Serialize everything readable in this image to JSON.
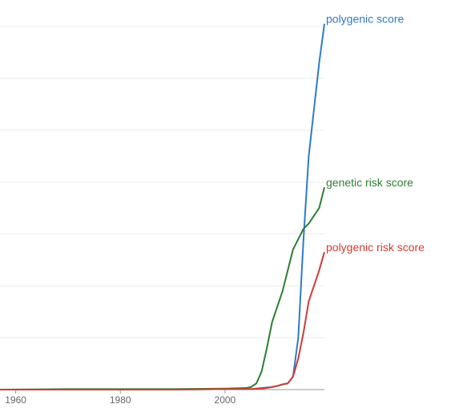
{
  "chart_data": {
    "type": "line",
    "x": [
      1957,
      1970,
      1990,
      2000,
      2004,
      2005,
      2006,
      2007,
      2008,
      2009,
      2010,
      2011,
      2012,
      2013,
      2014,
      2015,
      2016,
      2017,
      2018,
      2019
    ],
    "series": [
      {
        "name": "polygenic score",
        "color": "#2f7bc6",
        "values": [
          0,
          0,
          0,
          0.01,
          0.01,
          0.01,
          0.02,
          0.03,
          0.04,
          0.05,
          0.07,
          0.1,
          0.12,
          0.25,
          1.0,
          2.9,
          4.5,
          5.4,
          6.3,
          7.05
        ]
      },
      {
        "name": "genetic risk score",
        "color": "#2e7d32",
        "values": [
          0,
          0.01,
          0.01,
          0.02,
          0.03,
          0.05,
          0.12,
          0.35,
          0.8,
          1.3,
          1.6,
          1.9,
          2.3,
          2.7,
          2.9,
          3.1,
          3.2,
          3.35,
          3.5,
          3.9
        ]
      },
      {
        "name": "polygenic risk score",
        "color": "#d03b35",
        "values": [
          0,
          0,
          0,
          0.01,
          0.01,
          0.01,
          0.02,
          0.02,
          0.03,
          0.05,
          0.07,
          0.1,
          0.12,
          0.25,
          0.6,
          1.1,
          1.7,
          2.0,
          2.3,
          2.65
        ]
      }
    ],
    "xlim": [
      1957,
      2019
    ],
    "xticks": [
      1960,
      1980,
      2000
    ],
    "ylim": [
      0,
      7
    ],
    "grid": true
  }
}
